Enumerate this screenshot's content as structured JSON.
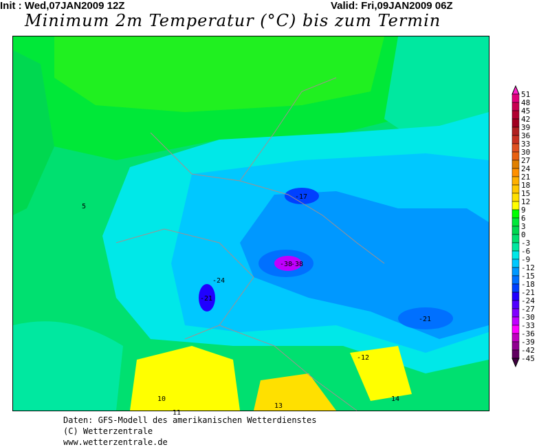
{
  "header": {
    "init": "Init : Wed,07JAN2009 12Z",
    "valid": "Valid: Fri,09JAN2009 06Z",
    "title": "Minimum 2m Temperatur (°C) bis zum Termin"
  },
  "legend": {
    "top_arrow_color": "#ff20c8",
    "bottom_arrow_color": "#400040",
    "labels": [
      "51",
      "48",
      "45",
      "42",
      "39",
      "36",
      "33",
      "30",
      "27",
      "24",
      "21",
      "18",
      "15",
      "12",
      "9",
      "6",
      "3",
      "0",
      "-3",
      "-6",
      "-9",
      "-12",
      "-15",
      "-18",
      "-21",
      "-24",
      "-27",
      "-30",
      "-33",
      "-36",
      "-39",
      "-42",
      "-45"
    ],
    "colors": [
      "#e0007a",
      "#c80050",
      "#b00030",
      "#a00020",
      "#b02020",
      "#c83020",
      "#e05020",
      "#e86010",
      "#e08000",
      "#ff9000",
      "#ffb000",
      "#ffc800",
      "#ffe000",
      "#ffff00",
      "#00ff00",
      "#00e838",
      "#00d850",
      "#00e070",
      "#00e8a0",
      "#00e8e8",
      "#00c8ff",
      "#0098ff",
      "#0070ff",
      "#0040ff",
      "#2000ff",
      "#5000ff",
      "#8000ff",
      "#c000ff",
      "#ff00ff",
      "#c000c0",
      "#900090",
      "#600060"
    ]
  },
  "map": {
    "extreme_min_label": "-38",
    "samples": [
      {
        "v": "-38",
        "c": "#c000ff"
      },
      {
        "v": "-17",
        "c": "#0040ff"
      },
      {
        "v": "-21",
        "c": "#2000ff"
      },
      {
        "v": "-24",
        "c": "#0040ff"
      },
      {
        "v": "-21",
        "c": "#0070ff"
      },
      {
        "v": "10",
        "c": "#000"
      },
      {
        "v": "11",
        "c": "#000"
      },
      {
        "v": "13",
        "c": "#000"
      },
      {
        "v": "14",
        "c": "#000"
      },
      {
        "v": "-12",
        "c": "#000"
      },
      {
        "v": "5",
        "c": "#000"
      }
    ]
  },
  "footer": {
    "line1": "Daten: GFS-Modell des amerikanischen Wetterdienstes",
    "line2": "(C) Wetterzentrale",
    "line3": "www.wetterzentrale.de"
  }
}
